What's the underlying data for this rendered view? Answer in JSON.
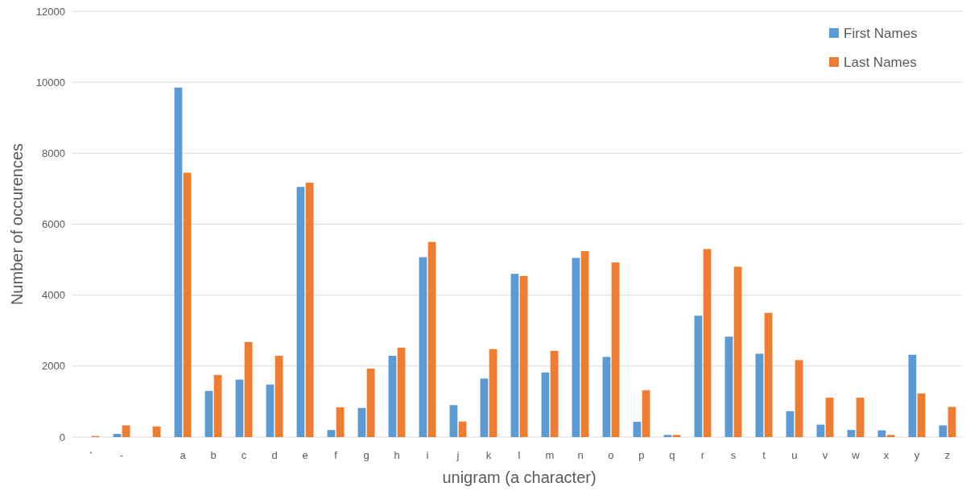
{
  "chart_data": {
    "type": "bar",
    "xlabel": "unigram (a character)",
    "ylabel": "Number of occurences",
    "categories": [
      "'",
      "-",
      null,
      "a",
      "b",
      "c",
      "d",
      "e",
      "f",
      "g",
      "h",
      "i",
      "j",
      "k",
      "l",
      "m",
      "n",
      "o",
      "p",
      "q",
      "r",
      "s",
      "t",
      "u",
      "v",
      "w",
      "x",
      "y",
      "z"
    ],
    "series": [
      {
        "name": "First Names",
        "color": "#5b9bd5",
        "values": [
          null,
          90,
          0,
          9850,
          1300,
          1620,
          1480,
          7050,
          200,
          820,
          2290,
          5070,
          900,
          1650,
          4600,
          1820,
          5050,
          2260,
          430,
          60,
          3420,
          2830,
          2350,
          730,
          350,
          200,
          190,
          2320,
          330
        ]
      },
      {
        "name": "Last Names",
        "color": "#ed7d31",
        "values": [
          30,
          330,
          300,
          7450,
          1750,
          2680,
          2290,
          7170,
          840,
          1930,
          2520,
          5500,
          440,
          2480,
          4540,
          2430,
          5240,
          4920,
          1320,
          60,
          5300,
          4800,
          3500,
          2170,
          1110,
          1110,
          60,
          1230,
          850
        ]
      }
    ],
    "ylim": [
      0,
      12000
    ],
    "yticks": [
      0,
      2000,
      4000,
      6000,
      8000,
      10000,
      12000
    ],
    "grid": "y",
    "legend": "top right"
  }
}
